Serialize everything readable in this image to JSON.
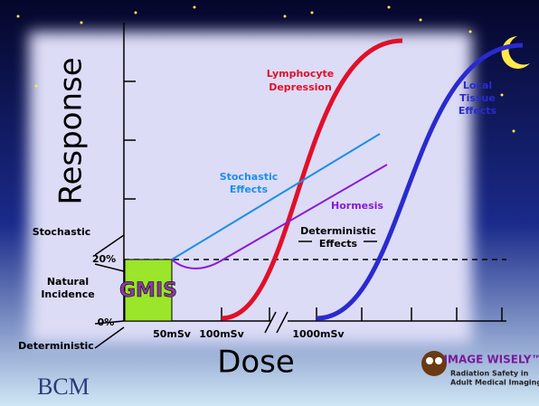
{
  "axes": {
    "y_label": "Response",
    "x_label": "Dose"
  },
  "y_labels": {
    "stochastic": "Stochastic",
    "twenty": "20%",
    "natural": [
      "Natural",
      "Incidence"
    ],
    "zero": "0%",
    "deterministic": "Deterministic"
  },
  "x_labels": [
    "50mSv",
    "100mSv",
    "1000mSv"
  ],
  "box": "GMIS",
  "curves": {
    "lymphocyte": [
      "Lymphocyte",
      "Depression"
    ],
    "local": [
      "Local",
      "Tissue",
      "Effects"
    ],
    "stochastic": [
      "Stochastic",
      "Effects"
    ],
    "hormesis": "Hormesis",
    "deterministic": [
      "Deterministic",
      "Effects"
    ]
  },
  "footer": {
    "bcm": "BCM",
    "brand": "IMAGE WISELY™",
    "tagline": [
      "Radiation Safety in",
      "Adult Medical Imaging"
    ]
  }
}
